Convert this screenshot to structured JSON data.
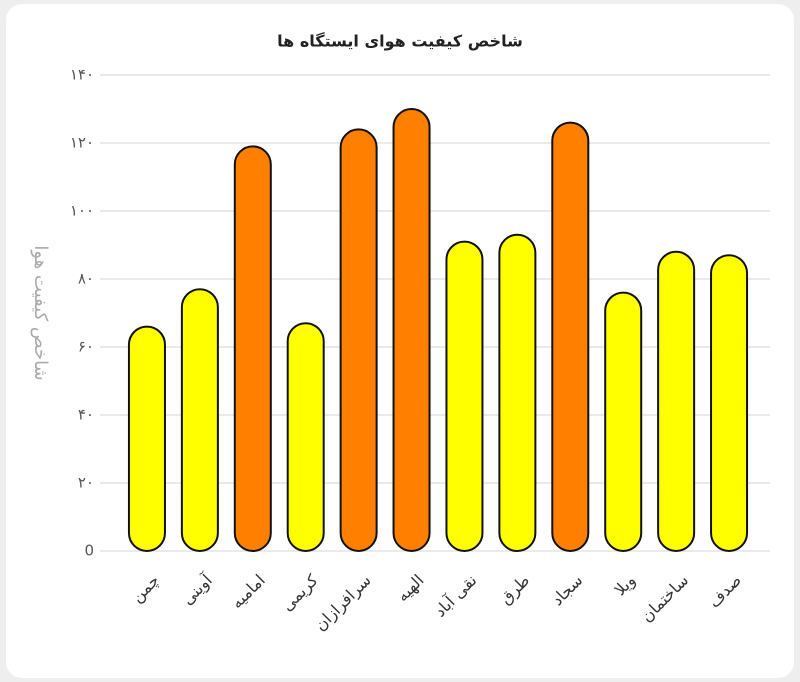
{
  "chart_data": {
    "type": "bar",
    "title": "شاخص کیفیت هوای ایستگاه ها",
    "y_label": "شاخص کیفیت هوا",
    "categories": [
      "چمن",
      "آوینی",
      "امامیه",
      "کریمی",
      "سرافرازان",
      "الهیه",
      "نقی آباد",
      "طرق",
      "سجاد",
      "ویلا",
      "ساختمان",
      "صدف"
    ],
    "values": [
      66,
      77,
      119,
      67,
      124,
      130,
      91,
      93,
      126,
      76,
      88,
      87
    ],
    "colors": [
      "#ffff00",
      "#ffff00",
      "#ff7f00",
      "#ffff00",
      "#ff7f00",
      "#ff7f00",
      "#ffff00",
      "#ffff00",
      "#ff7f00",
      "#ffff00",
      "#ffff00",
      "#ffff00"
    ],
    "ylim": [
      0,
      140
    ],
    "yticks": [
      0,
      {
        "value": 20,
        "label": "۲۰"
      },
      {
        "value": 40,
        "label": "۴۰"
      },
      {
        "value": 60,
        "label": "۶۰"
      },
      {
        "value": 80,
        "label": "۸۰"
      },
      {
        "value": 100,
        "label": "۱۰۰"
      },
      {
        "value": 120,
        "label": "۱۲۰"
      },
      {
        "value": 140,
        "label": "۱۴۰"
      }
    ],
    "grid": true
  }
}
